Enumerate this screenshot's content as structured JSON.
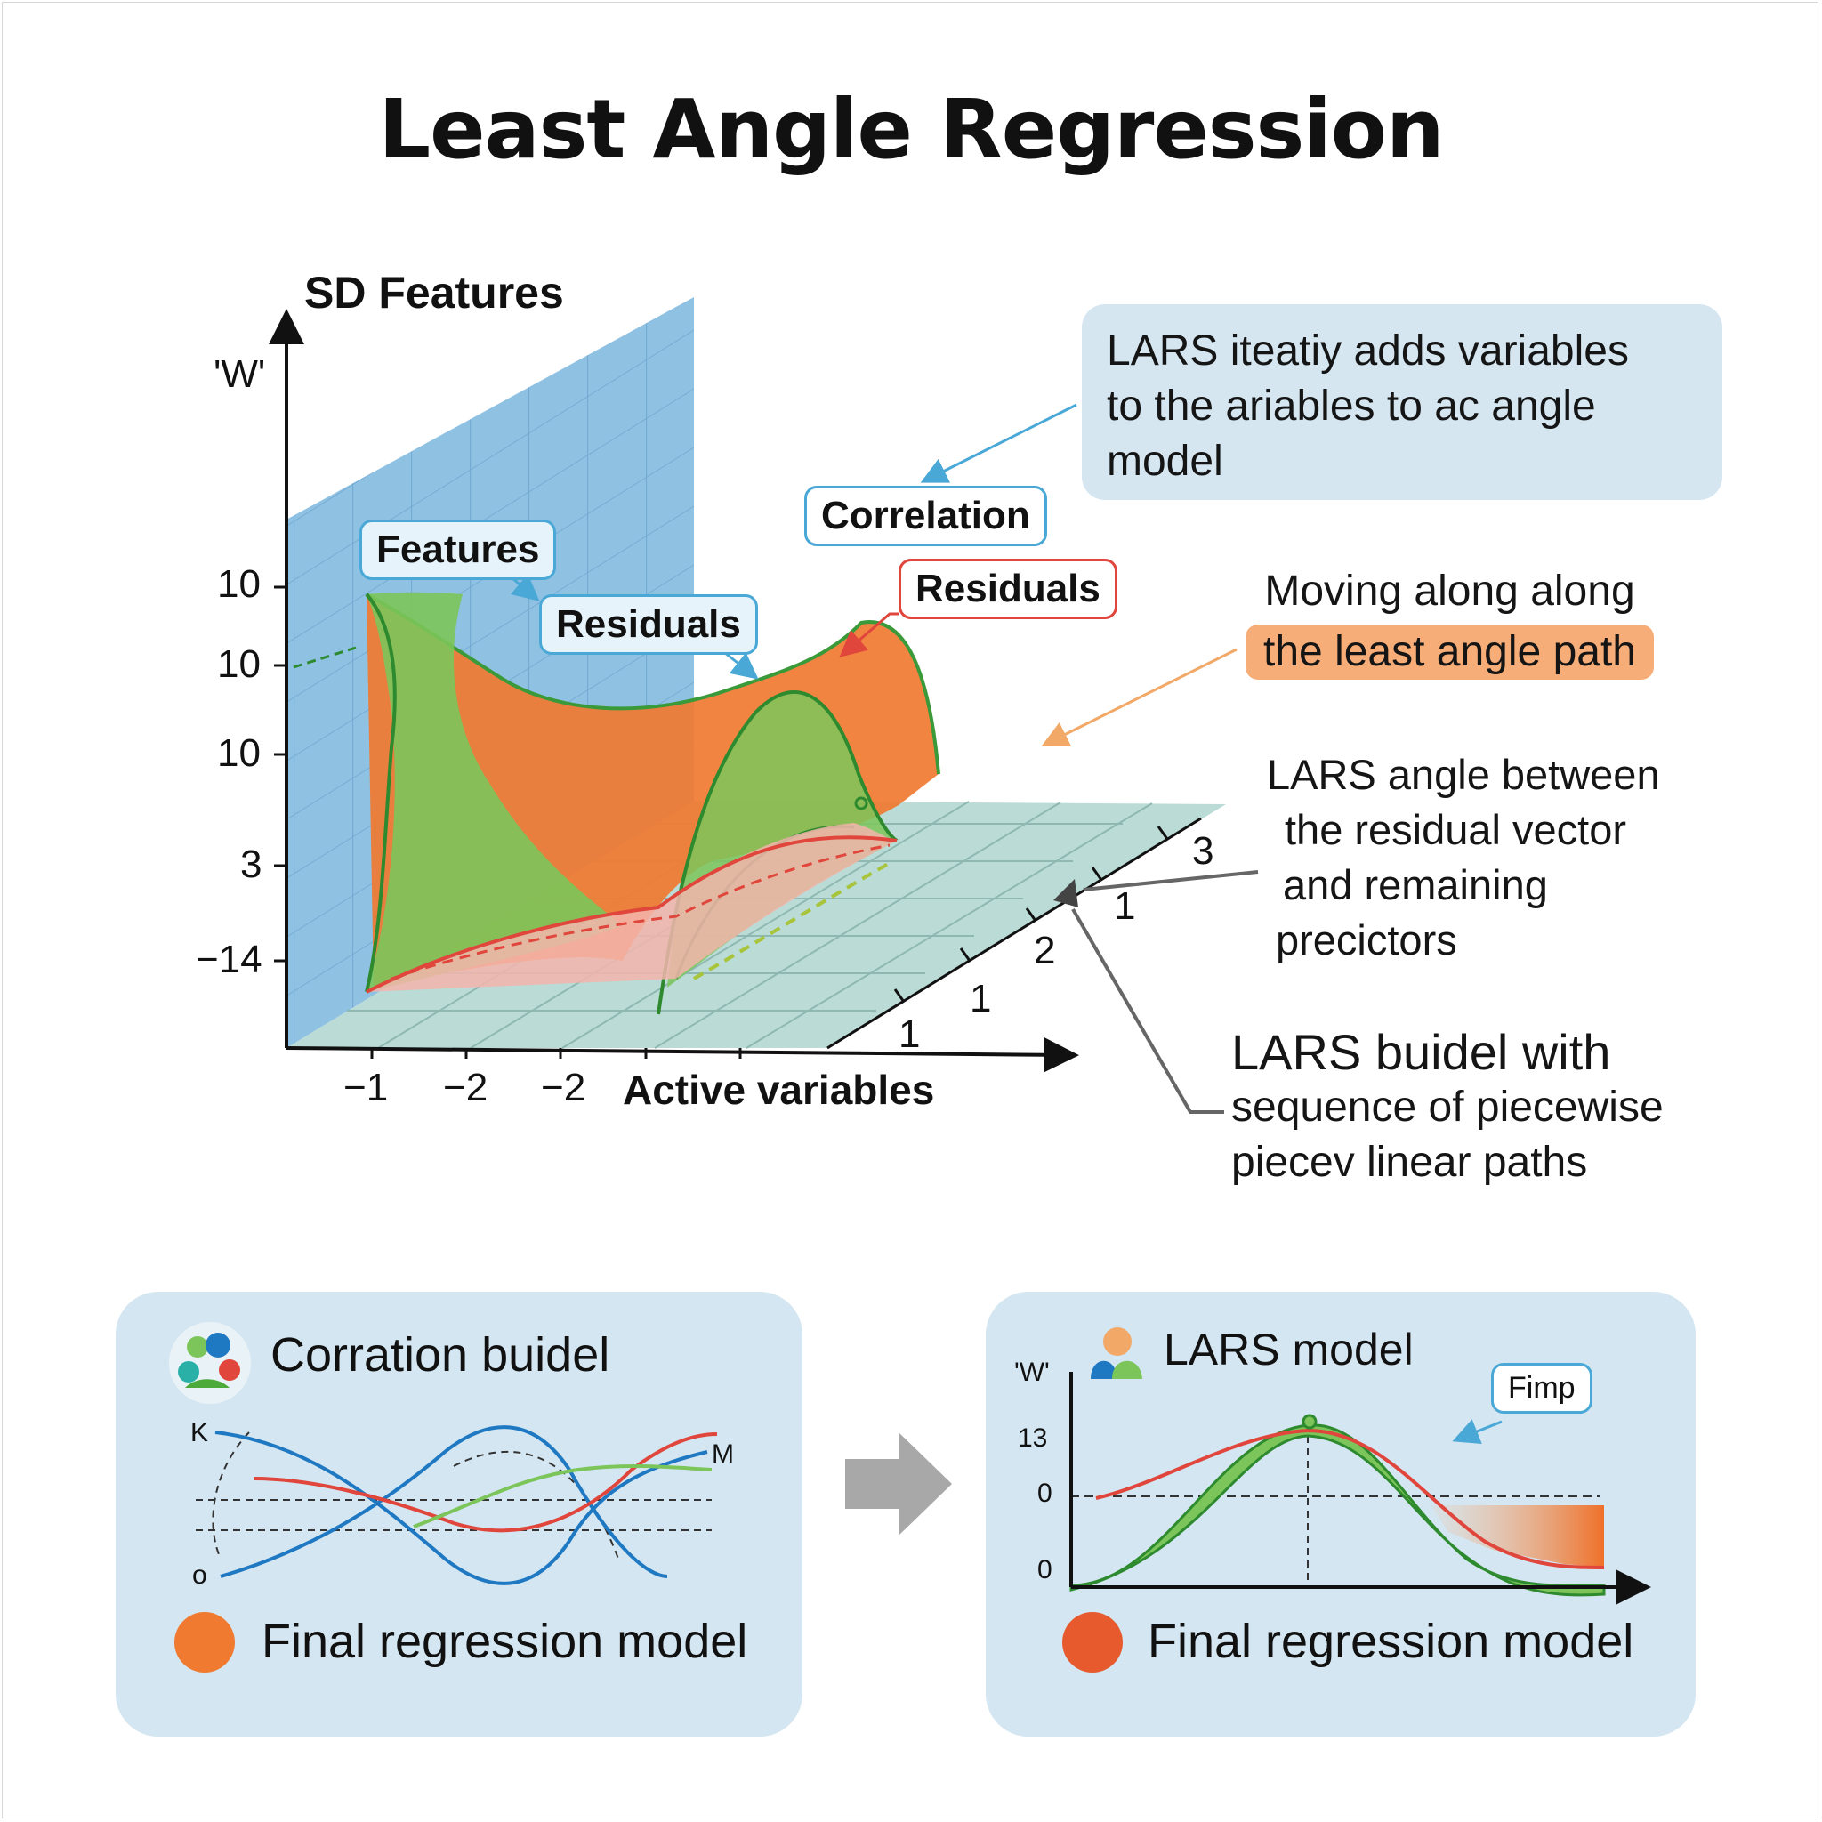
{
  "title": "Least Angle Regression",
  "diagram": {
    "y_axis_title": "SD Features",
    "y_axis_label": "'W'",
    "y_ticks": [
      "10",
      "10",
      "10",
      "3",
      "−14"
    ],
    "x_ticks": [
      "−1",
      "−2",
      "−2"
    ],
    "x_axis_title": "Active variables",
    "depth_ticks": [
      "3",
      "1",
      "2",
      "1",
      "1"
    ],
    "tags": {
      "features": "Features",
      "residuals_blue": "Residuals",
      "correlation": "Correlation",
      "residuals_red": "Residuals"
    },
    "colors": {
      "wall": "#8fc1e3",
      "floor": "#b6d9d4",
      "green_surface": "#7cc55a",
      "orange_surface": "#f07a30",
      "red_line": "#e0463c"
    }
  },
  "notes": {
    "note1": [
      "LARS iteatiy adds variables",
      "to the ariables to ac angle",
      "model"
    ],
    "note2_line1": "Moving along along",
    "note2_highlight": "the least angle path",
    "note3": [
      "LARS angle between",
      "the residual vector",
      "and remaining",
      "precictors"
    ],
    "note4_line1": "LARS buidel with",
    "note4_line2": "sequence of piecewise",
    "note4_line3": "piecev linear paths"
  },
  "panel_left": {
    "title": "Corration buidel",
    "label_top": "K",
    "label_bottom": "o",
    "label_right": "M",
    "footer": "Final regression model",
    "icon": "people-cluster-icon"
  },
  "panel_right": {
    "title": "LARS model",
    "y_label": "'W'",
    "y_ticks": [
      "13",
      "0",
      "0"
    ],
    "callout": "Fimp",
    "footer": "Final regression model",
    "icon": "person-icon"
  }
}
